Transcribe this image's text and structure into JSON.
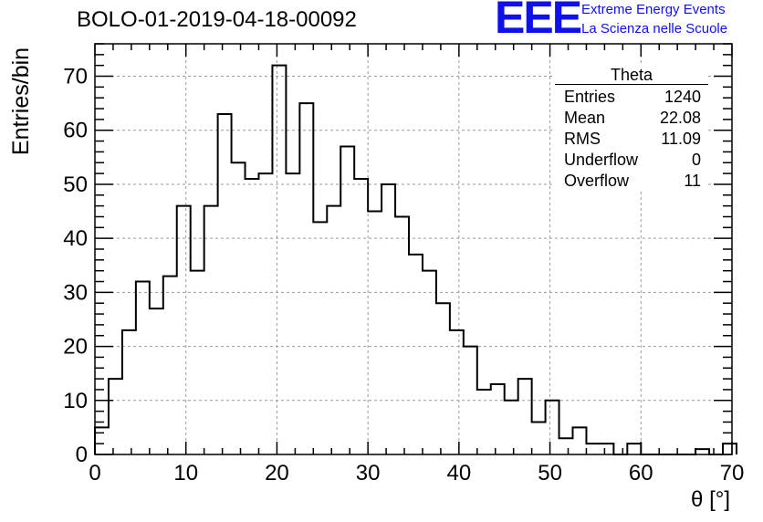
{
  "header": {
    "run_title": "BOLO-01-2019-04-18-00092",
    "logo_text": "EEE",
    "project_line1": "Extreme Energy Events",
    "project_line2": "La Scienza nelle Scuole"
  },
  "stats_box": {
    "title": "Theta",
    "rows": [
      {
        "label": "Entries",
        "value": "1240"
      },
      {
        "label": "Mean",
        "value": "22.08"
      },
      {
        "label": "RMS",
        "value": "11.09"
      },
      {
        "label": "Underflow",
        "value": "0"
      },
      {
        "label": "Overflow",
        "value": "11"
      }
    ]
  },
  "chart_data": {
    "type": "histogram",
    "xlabel": "θ [°]",
    "ylabel": "Entries/bin",
    "xlim": [
      0,
      70
    ],
    "ylim": [
      0,
      76
    ],
    "x_ticks": [
      0,
      10,
      20,
      30,
      40,
      50,
      60,
      70
    ],
    "y_ticks": [
      0,
      10,
      20,
      30,
      40,
      50,
      60,
      70
    ],
    "grid": true,
    "bin_width": 1.5,
    "bin_edges_start": 0,
    "values": [
      5,
      14,
      23,
      32,
      27,
      33,
      46,
      34,
      46,
      63,
      54,
      51,
      52,
      72,
      52,
      65,
      43,
      46,
      57,
      51,
      45,
      50,
      44,
      37,
      34,
      28,
      23,
      20,
      12,
      13,
      10,
      14,
      6,
      10,
      3,
      5,
      2,
      2,
      0,
      2,
      0,
      0,
      0,
      0,
      1,
      0,
      2
    ]
  },
  "colors": {
    "histogram_line": "#000000",
    "grid": "#9a9a9a",
    "logo": "#1010ee"
  }
}
